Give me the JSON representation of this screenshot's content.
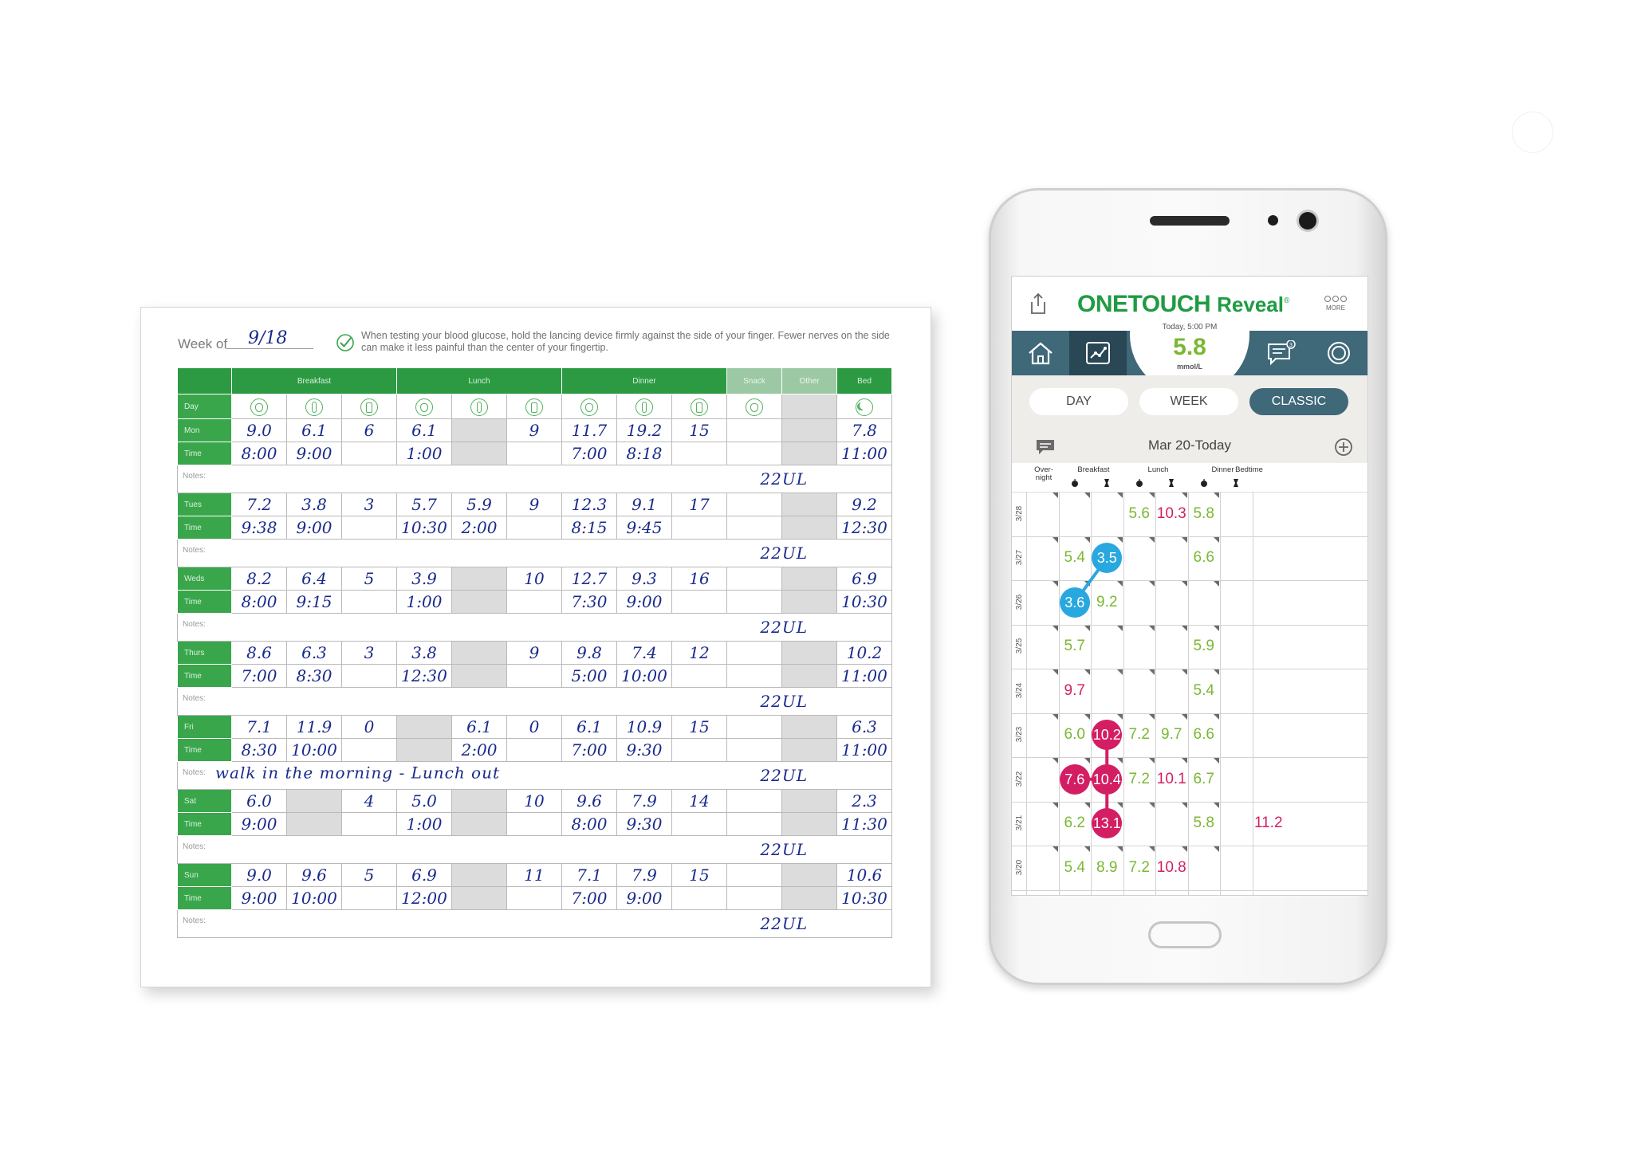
{
  "sheet": {
    "week_label": "Week of",
    "week_value": "9/18",
    "tip": "When testing your blood glucose, hold the lancing device firmly against the side of your finger. Fewer nerves on the side can make it less painful than the center of your fingertip.",
    "groups": [
      "Breakfast",
      "Lunch",
      "Dinner",
      "Snack",
      "Other",
      "Bed"
    ],
    "day_header": "Day",
    "time_label": "Time",
    "notes_label": "Notes:",
    "days": [
      {
        "day": "Mon",
        "values": [
          "9.0",
          "6.1",
          "6",
          "6.1",
          "",
          "9",
          "11.7",
          "19.2",
          "15",
          "",
          "",
          "7.8"
        ],
        "times": [
          "8:00",
          "9:00",
          "",
          "1:00",
          "",
          "",
          "7:00",
          "8:18",
          "",
          "",
          "",
          "11:00"
        ],
        "note": "",
        "insulin": "22UL"
      },
      {
        "day": "Tues",
        "values": [
          "7.2",
          "3.8",
          "3",
          "5.7",
          "5.9",
          "9",
          "12.3",
          "9.1",
          "17",
          "",
          "",
          "9.2"
        ],
        "times": [
          "9:38",
          "9:00",
          "",
          "10:30",
          "2:00",
          "",
          "8:15",
          "9:45",
          "",
          "",
          "",
          "12:30"
        ],
        "note": "",
        "insulin": "22UL"
      },
      {
        "day": "Weds",
        "values": [
          "8.2",
          "6.4",
          "5",
          "3.9",
          "",
          "10",
          "12.7",
          "9.3",
          "16",
          "",
          "",
          "6.9"
        ],
        "times": [
          "8:00",
          "9:15",
          "",
          "1:00",
          "",
          "",
          "7:30",
          "9:00",
          "",
          "",
          "",
          "10:30"
        ],
        "note": "",
        "insulin": "22UL"
      },
      {
        "day": "Thurs",
        "values": [
          "8.6",
          "6.3",
          "3",
          "3.8",
          "",
          "9",
          "9.8",
          "7.4",
          "12",
          "",
          "",
          "10.2"
        ],
        "times": [
          "7:00",
          "8:30",
          "",
          "12:30",
          "",
          "",
          "5:00",
          "10:00",
          "",
          "",
          "",
          "11:00"
        ],
        "note": "",
        "insulin": "22UL"
      },
      {
        "day": "Fri",
        "values": [
          "7.1",
          "11.9",
          "0",
          "",
          "6.1",
          "0",
          "6.1",
          "10.9",
          "15",
          "",
          "",
          "6.3"
        ],
        "times": [
          "8:30",
          "10:00",
          "",
          "",
          "2:00",
          "",
          "7:00",
          "9:30",
          "",
          "",
          "",
          "11:00"
        ],
        "note": "walk in the morning - Lunch out",
        "insulin": "22UL"
      },
      {
        "day": "Sat",
        "values": [
          "6.0",
          "",
          "4",
          "5.0",
          "",
          "10",
          "9.6",
          "7.9",
          "14",
          "",
          "",
          "2.3"
        ],
        "times": [
          "9:00",
          "",
          "",
          "1:00",
          "",
          "",
          "8:00",
          "9:30",
          "",
          "",
          "",
          "11:30"
        ],
        "note": "",
        "insulin": "22UL"
      },
      {
        "day": "Sun",
        "values": [
          "9.0",
          "9.6",
          "5",
          "6.9",
          "",
          "11",
          "7.1",
          "7.9",
          "15",
          "",
          "",
          "10.6"
        ],
        "times": [
          "9:00",
          "10:00",
          "",
          "12:00",
          "",
          "",
          "7:00",
          "9:00",
          "",
          "",
          "",
          "10:30"
        ],
        "note": "",
        "insulin": "22UL"
      }
    ]
  },
  "app": {
    "brand_one": "ONETOUCH",
    "brand_reveal": "Reveal",
    "brand_reg": "®",
    "more_label": "MORE",
    "reading_when": "Today, 5:00 PM",
    "reading_value": "5.8",
    "reading_unit": "mmol/L",
    "tabs": [
      "DAY",
      "WEEK",
      "CLASSIC"
    ],
    "active_tab": "CLASSIC",
    "message_badge": "3",
    "date_range": "Mar 20-Today",
    "columns": [
      "Over-\nnight",
      "Breakfast",
      "Lunch",
      "Dinner",
      "Bedtime"
    ],
    "days": [
      "3/28",
      "3/27",
      "3/26",
      "3/25",
      "3/24",
      "3/23",
      "3/22",
      "3/21",
      "3/20"
    ],
    "colors": {
      "green": "#7ab833",
      "pink": "#d41e64",
      "blue": "#29a8e0",
      "teal": "#3f6878",
      "brand": "#1f9b43"
    },
    "readings": [
      {
        "row": 0,
        "col": 3,
        "v": "5.6",
        "c": "g"
      },
      {
        "row": 0,
        "col": 4,
        "v": "10.3",
        "c": "p"
      },
      {
        "row": 0,
        "col": 5,
        "v": "5.8",
        "c": "g"
      },
      {
        "row": 1,
        "col": 1,
        "v": "5.4",
        "c": "g"
      },
      {
        "row": 1,
        "col": 2,
        "v": "3.5",
        "c": "b",
        "bubble": true
      },
      {
        "row": 1,
        "col": 5,
        "v": "6.6",
        "c": "g"
      },
      {
        "row": 2,
        "col": 1,
        "v": "3.6",
        "c": "b",
        "bubble": true
      },
      {
        "row": 2,
        "col": 2,
        "v": "9.2",
        "c": "g"
      },
      {
        "row": 3,
        "col": 1,
        "v": "5.7",
        "c": "g"
      },
      {
        "row": 3,
        "col": 5,
        "v": "5.9",
        "c": "g"
      },
      {
        "row": 4,
        "col": 1,
        "v": "9.7",
        "c": "p"
      },
      {
        "row": 4,
        "col": 5,
        "v": "5.4",
        "c": "g"
      },
      {
        "row": 5,
        "col": 1,
        "v": "6.0",
        "c": "g"
      },
      {
        "row": 5,
        "col": 2,
        "v": "10.2",
        "c": "m",
        "bubble": true
      },
      {
        "row": 5,
        "col": 3,
        "v": "7.2",
        "c": "g"
      },
      {
        "row": 5,
        "col": 4,
        "v": "9.7",
        "c": "g"
      },
      {
        "row": 5,
        "col": 5,
        "v": "6.6",
        "c": "g"
      },
      {
        "row": 6,
        "col": 1,
        "v": "7.6",
        "c": "m",
        "bubble": true
      },
      {
        "row": 6,
        "col": 2,
        "v": "10.4",
        "c": "m",
        "bubble": true
      },
      {
        "row": 6,
        "col": 3,
        "v": "7.2",
        "c": "g"
      },
      {
        "row": 6,
        "col": 4,
        "v": "10.1",
        "c": "p"
      },
      {
        "row": 6,
        "col": 5,
        "v": "6.7",
        "c": "g"
      },
      {
        "row": 7,
        "col": 1,
        "v": "6.2",
        "c": "g"
      },
      {
        "row": 7,
        "col": 2,
        "v": "13.1",
        "c": "m",
        "bubble": true
      },
      {
        "row": 7,
        "col": 5,
        "v": "5.8",
        "c": "g"
      },
      {
        "row": 7,
        "col": 7,
        "v": "11.2",
        "c": "p"
      },
      {
        "row": 8,
        "col": 1,
        "v": "5.4",
        "c": "g"
      },
      {
        "row": 8,
        "col": 2,
        "v": "8.9",
        "c": "g"
      },
      {
        "row": 8,
        "col": 3,
        "v": "7.2",
        "c": "g"
      },
      {
        "row": 8,
        "col": 4,
        "v": "10.8",
        "c": "p"
      }
    ]
  }
}
